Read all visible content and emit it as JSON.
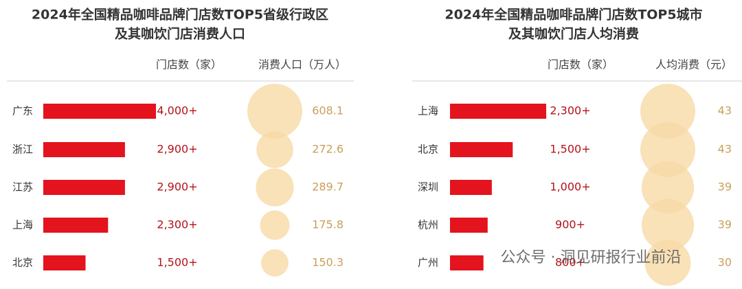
{
  "chart_data": [
    {
      "type": "bar-bubble",
      "title": [
        "2024年全国精品咖啡品牌门店数TOP5省级行政区",
        "及其咖饮门店消费人口"
      ],
      "categories": [
        "广东",
        "浙江",
        "江苏",
        "上海",
        "北京"
      ],
      "series": [
        {
          "name": "门店数（家）",
          "color": "#e3141d",
          "values": [
            4000,
            2900,
            2900,
            2300,
            1500
          ],
          "value_labels": [
            "4,000+",
            "2,900+",
            "2,900+",
            "2,300+",
            "1,500+"
          ]
        },
        {
          "name": "消费人口（万人）",
          "color": "#f7d9a6",
          "values": [
            608.1,
            272.6,
            289.7,
            175.8,
            150.3
          ]
        }
      ]
    },
    {
      "type": "bar-bubble",
      "title": [
        "2024年全国精品咖啡品牌门店数TOP5城市",
        "及其咖饮门店人均消费"
      ],
      "categories": [
        "上海",
        "北京",
        "深圳",
        "杭州",
        "广州"
      ],
      "series": [
        {
          "name": "门店数（家）",
          "color": "#e3141d",
          "values": [
            2300,
            1500,
            1000,
            900,
            800
          ],
          "value_labels": [
            "2,300+",
            "1,500+",
            "1,000+",
            "900+",
            "800+"
          ]
        },
        {
          "name": "人均消费（元）",
          "color": "#f7d9a6",
          "values": [
            43,
            43,
            39,
            39,
            30
          ]
        }
      ]
    }
  ],
  "watermark": "公众号 · 洞见研报行业前沿"
}
